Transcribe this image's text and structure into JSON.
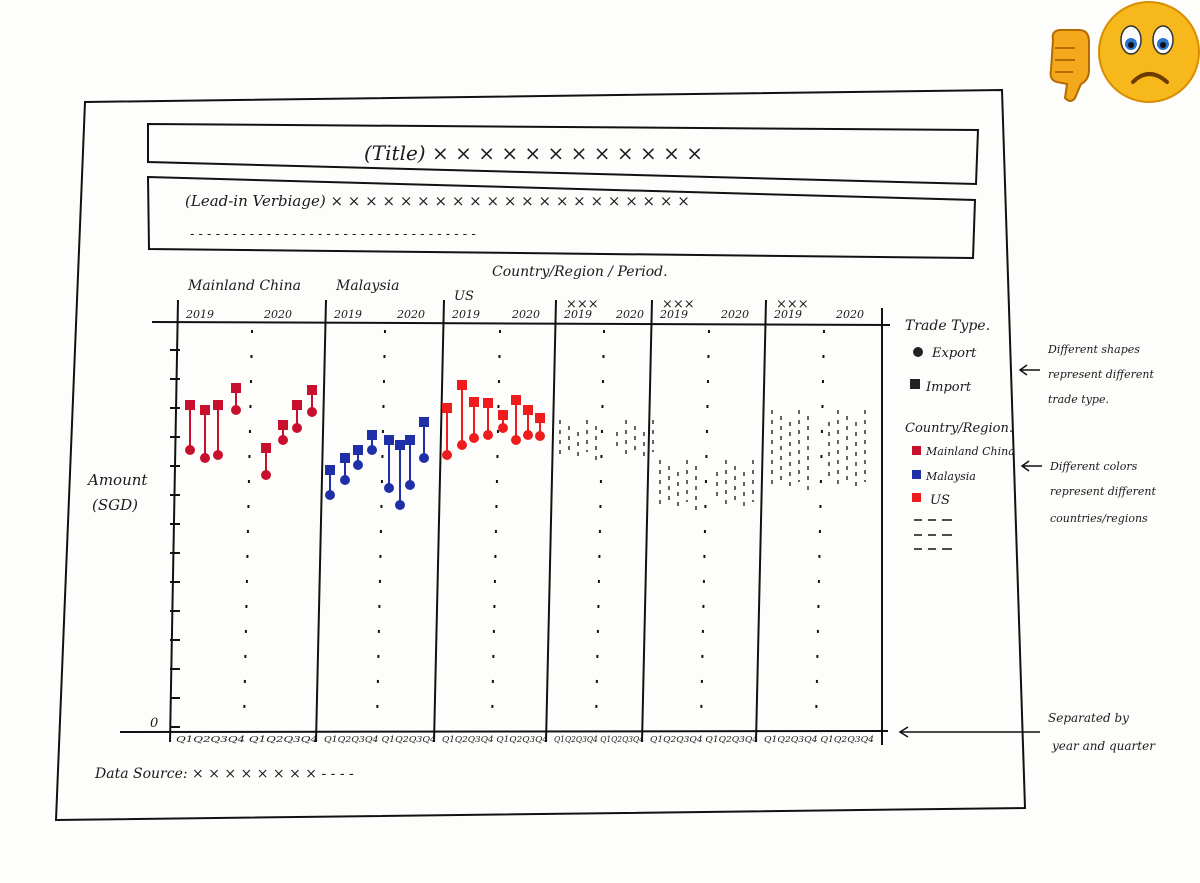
{
  "header": {
    "title": "(Title) × × × × × × × × × × × ×",
    "lead_in_line1": "(Lead-in Verbiage) × × × × × × × × × × × × × × × × × × × × ×",
    "lead_in_line2": "- - - - - - - - - - - - - - - - - - - - - - - - - - - - - - - - - -"
  },
  "chart": {
    "column_header": "Country/Region / Period.",
    "y_axis_label_line1": "Amount",
    "y_axis_label_line2": "(SGD)",
    "zero_label": "0",
    "panels": [
      {
        "region": "Mainland China",
        "years": [
          "2019",
          "2020"
        ],
        "quarters": "Q1Q2Q3Q4 Q1Q2Q3Q4"
      },
      {
        "region": "Malaysia",
        "years": [
          "2019",
          "2020"
        ],
        "quarters": "Q1Q2Q3Q4 Q1Q2Q3Q4"
      },
      {
        "region": "US",
        "years": [
          "2019",
          "2020"
        ],
        "quarters": "Q1Q2Q3Q4 Q1Q2Q3Q4"
      },
      {
        "region": "×××",
        "years": [
          "2019",
          "2020"
        ],
        "quarters": "Q1Q2Q3Q4 Q1Q2Q3Q4"
      },
      {
        "region": "×××",
        "years": [
          "2019",
          "2020"
        ],
        "quarters": "Q1Q2Q3Q4 Q1Q2Q3Q4"
      },
      {
        "region": "×××",
        "years": [
          "2019",
          "2020"
        ],
        "quarters": "Q1Q2Q3Q4 Q1Q2Q3Q4"
      }
    ],
    "data_source": "Data Source: × × × × × × × × - - - -"
  },
  "legend": {
    "trade_type_title": "Trade Type.",
    "export_label": "Export",
    "import_label": "Import",
    "country_title": "Country/Region.",
    "countries": [
      "Mainland China",
      "Malaysia",
      "US"
    ],
    "colors": {
      "Mainland China": "#c8102e",
      "Malaysia": "#1f2fa8",
      "US": "#ee1c1c"
    }
  },
  "annotations": {
    "shapes_note": [
      "Different shapes",
      "represent different",
      "trade type."
    ],
    "colors_note": [
      "Different colors",
      "represent different",
      "countries/regions"
    ],
    "separated_note": [
      "Separated by",
      "year and quarter"
    ]
  },
  "emoji": {
    "icons": [
      "thumbs-down-icon",
      "sad-face-icon"
    ]
  }
}
